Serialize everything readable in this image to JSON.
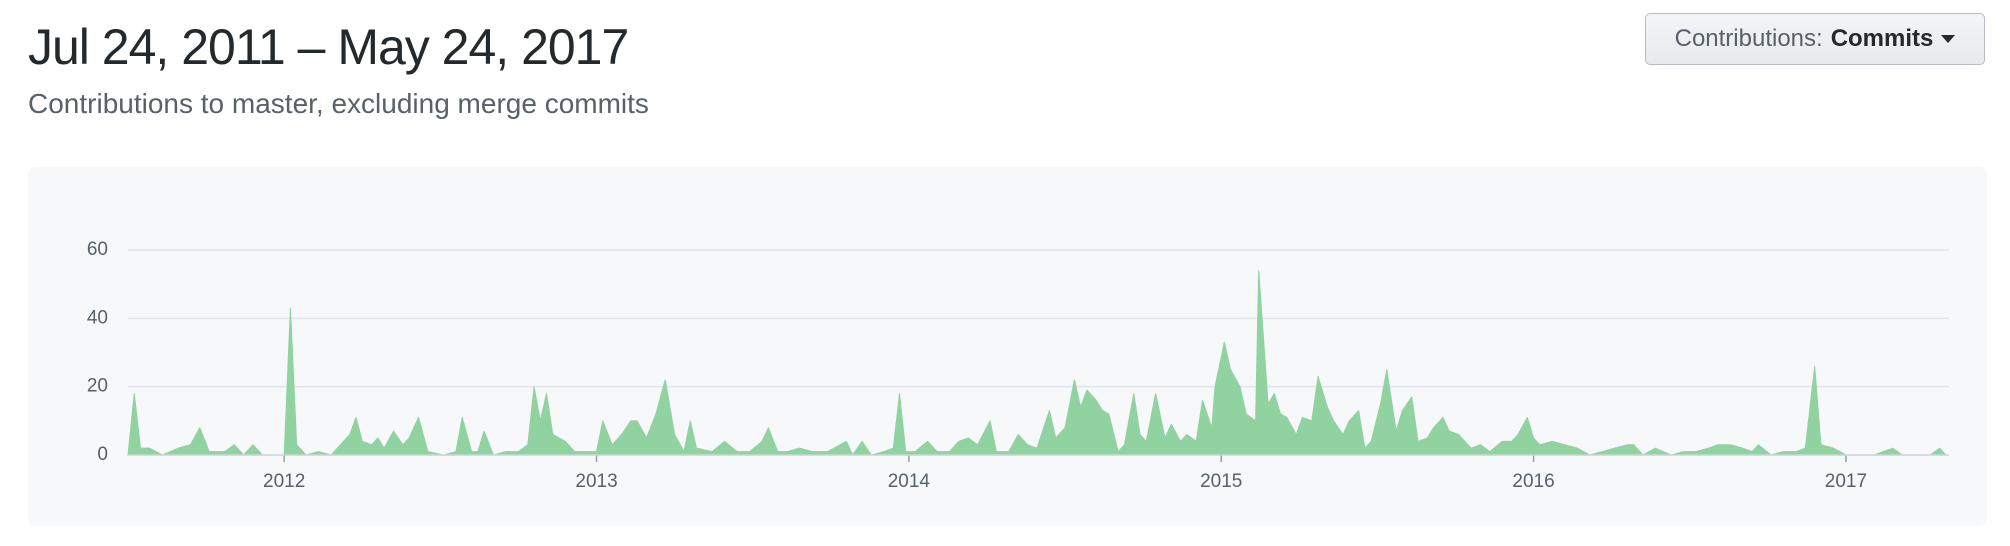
{
  "header": {
    "title": "Jul 24, 2011 – May 24, 2017",
    "subtitle": "Contributions to master, excluding merge commits"
  },
  "button": {
    "label": "Contributions:",
    "value": "Commits"
  },
  "chart_data": {
    "type": "area",
    "color": "#90d2a0",
    "grid": true,
    "xlim": [
      2011.5,
      2017.33
    ],
    "xticks": [
      2012,
      2013,
      2014,
      2015,
      2016,
      2017
    ],
    "ylim": [
      0,
      60
    ],
    "yticks": [
      0,
      20,
      40,
      60
    ],
    "x": [
      2011.5,
      2011.52,
      2011.54,
      2011.57,
      2011.61,
      2011.66,
      2011.7,
      2011.73,
      2011.76,
      2011.81,
      2011.84,
      2011.87,
      2011.9,
      2011.93,
      2011.97,
      2012.0,
      2012.02,
      2012.04,
      2012.07,
      2012.11,
      2012.15,
      2012.18,
      2012.21,
      2012.23,
      2012.25,
      2012.28,
      2012.3,
      2012.32,
      2012.35,
      2012.38,
      2012.4,
      2012.43,
      2012.46,
      2012.51,
      2012.55,
      2012.57,
      2012.6,
      2012.62,
      2012.64,
      2012.67,
      2012.71,
      2012.75,
      2012.78,
      2012.8,
      2012.82,
      2012.84,
      2012.86,
      2012.9,
      2012.93,
      2012.97,
      2013.0,
      2013.02,
      2013.05,
      2013.08,
      2013.11,
      2013.13,
      2013.16,
      2013.19,
      2013.22,
      2013.25,
      2013.28,
      2013.3,
      2013.32,
      2013.37,
      2013.41,
      2013.45,
      2013.49,
      2013.53,
      2013.55,
      2013.58,
      2013.61,
      2013.65,
      2013.69,
      2013.74,
      2013.76,
      2013.8,
      2013.82,
      2013.85,
      2013.88,
      2013.92,
      2013.95,
      2013.97,
      2013.99,
      2014.02,
      2014.06,
      2014.09,
      2014.13,
      2014.16,
      2014.19,
      2014.22,
      2014.26,
      2014.28,
      2014.32,
      2014.35,
      2014.38,
      2014.41,
      2014.45,
      2014.47,
      2014.5,
      2014.53,
      2014.55,
      2014.57,
      2014.6,
      2014.62,
      2014.64,
      2014.67,
      2014.69,
      2014.72,
      2014.74,
      2014.76,
      2014.79,
      2014.82,
      2014.84,
      2014.87,
      2014.89,
      2014.92,
      2014.94,
      2014.97,
      2014.98,
      2015.01,
      2015.03,
      2015.06,
      2015.08,
      2015.11,
      2015.12,
      2015.15,
      2015.17,
      2015.19,
      2015.21,
      2015.24,
      2015.26,
      2015.29,
      2015.31,
      2015.34,
      2015.36,
      2015.39,
      2015.41,
      2015.44,
      2015.46,
      2015.48,
      2015.51,
      2015.53,
      2015.56,
      2015.58,
      2015.61,
      2015.63,
      2015.66,
      2015.68,
      2015.71,
      2015.73,
      2015.76,
      2015.78,
      2015.8,
      2015.83,
      2015.86,
      2015.9,
      2015.93,
      2015.95,
      2015.98,
      2016.0,
      2016.02,
      2016.06,
      2016.1,
      2016.14,
      2016.18,
      2016.22,
      2016.26,
      2016.3,
      2016.32,
      2016.35,
      2016.39,
      2016.44,
      2016.48,
      2016.52,
      2016.56,
      2016.59,
      2016.63,
      2016.67,
      2016.7,
      2016.72,
      2016.76,
      2016.8,
      2016.84,
      2016.87,
      2016.9,
      2016.92,
      2016.96,
      2017.0,
      2017.05,
      2017.09,
      2017.12,
      2017.15,
      2017.18,
      2017.23,
      2017.27,
      2017.3,
      2017.32
    ],
    "values": [
      0,
      18,
      2,
      2,
      0,
      2,
      3,
      8,
      1,
      1,
      3,
      0,
      3,
      0,
      0,
      0,
      43,
      3,
      0,
      1,
      0,
      3,
      6,
      11,
      4,
      3,
      5,
      2,
      7,
      3,
      5,
      11,
      1,
      0,
      1,
      11,
      1,
      1,
      7,
      0,
      1,
      1,
      3,
      20,
      10,
      18,
      6,
      4,
      1,
      1,
      1,
      10,
      3,
      6,
      10,
      10,
      5,
      12,
      22,
      6,
      1,
      10,
      2,
      1,
      4,
      1,
      1,
      4,
      8,
      1,
      1,
      2,
      1,
      1,
      2,
      4,
      0,
      4,
      0,
      1,
      2,
      18,
      1,
      1,
      4,
      1,
      1,
      4,
      5,
      3,
      10,
      1,
      1,
      6,
      3,
      2,
      13,
      5,
      8,
      22,
      14,
      19,
      16,
      13,
      12,
      1,
      3,
      18,
      6,
      4,
      18,
      5,
      9,
      4,
      6,
      4,
      16,
      8,
      20,
      33,
      25,
      20,
      12,
      10,
      54,
      15,
      18,
      12,
      11,
      6,
      11,
      10,
      23,
      14,
      10,
      6,
      10,
      13,
      2,
      4,
      15,
      25,
      7,
      13,
      17,
      4,
      5,
      8,
      11,
      7,
      6,
      4,
      2,
      3,
      1,
      4,
      4,
      6,
      11,
      5,
      3,
      4,
      3,
      2,
      0,
      1,
      2,
      3,
      3,
      0,
      2,
      0,
      1,
      1,
      2,
      3,
      3,
      2,
      1,
      3,
      0,
      1,
      1,
      2,
      26,
      3,
      2,
      0,
      0,
      0,
      1,
      2,
      0,
      0,
      0,
      2,
      0
    ]
  }
}
